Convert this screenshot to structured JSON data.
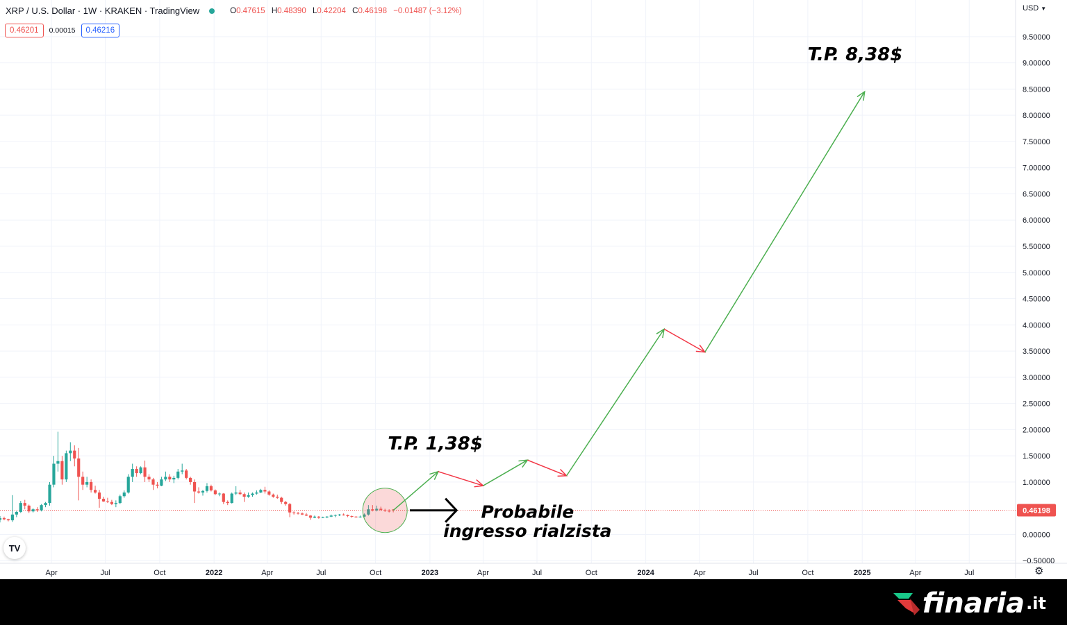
{
  "header": {
    "symbol": "XRP / U.S. Dollar · 1W · KRAKEN · TradingView",
    "status_color": "#26a69a",
    "ohlc": {
      "o_key": "O",
      "o": "0.47615",
      "h_key": "H",
      "h": "0.48390",
      "l_key": "L",
      "l": "0.42204",
      "c_key": "C",
      "c": "0.46198",
      "change": "−0.01487 (−3.12%)"
    },
    "bid": "0.46201",
    "spread": "0.00015",
    "ask": "0.46216",
    "currency": "USD"
  },
  "tv_logo": "TV",
  "brand": {
    "name": "finaria",
    "suffix": ".it",
    "logo_icon": "finaria-arrow-logo"
  },
  "chart_data": {
    "type": "candlestick",
    "title": "",
    "y_ticks": [
      9.5,
      9.0,
      8.5,
      8.0,
      7.5,
      7.0,
      6.5,
      6.0,
      5.5,
      5.0,
      4.5,
      4.0,
      3.5,
      3.0,
      2.5,
      2.0,
      1.5,
      1.0,
      0.0,
      -0.5
    ],
    "y_tick_labels": [
      "9.50000",
      "9.00000",
      "8.50000",
      "8.00000",
      "7.50000",
      "7.00000",
      "6.50000",
      "6.00000",
      "5.50000",
      "5.00000",
      "4.50000",
      "4.00000",
      "3.50000",
      "3.00000",
      "2.50000",
      "2.00000",
      "1.50000",
      "1.00000",
      "0.00000",
      "−0.50000"
    ],
    "ylim": [
      -0.55,
      10.2
    ],
    "x_ticks": [
      "2021-04-01",
      "2021-07-01",
      "2021-10-01",
      "2022-01-01",
      "2022-04-01",
      "2022-07-01",
      "2022-10-01",
      "2023-01-01",
      "2023-04-01",
      "2023-07-01",
      "2023-10-01",
      "2024-01-01",
      "2024-04-01",
      "2024-07-01",
      "2024-10-01",
      "2025-01-01",
      "2025-04-01",
      "2025-07-01"
    ],
    "x_tick_labels": [
      "Apr",
      "Jul",
      "Oct",
      "2022",
      "Apr",
      "Jul",
      "Oct",
      "2023",
      "Apr",
      "Jul",
      "Oct",
      "2024",
      "Apr",
      "Jul",
      "Oct",
      "2025",
      "Apr",
      "Jul"
    ],
    "x_tick_bold": [
      false,
      false,
      false,
      true,
      false,
      false,
      false,
      true,
      false,
      false,
      false,
      true,
      false,
      false,
      false,
      true,
      false,
      false
    ],
    "xlim": [
      "2021-01-04",
      "2025-09-15"
    ],
    "last_price": 0.46198,
    "last_price_label": "0.46198",
    "colors": {
      "up": "#26a69a",
      "down": "#ef5350",
      "up_arrow": "#4caf50",
      "down_arrow": "#f23645"
    },
    "candles": [
      {
        "date": "2021-01-04",
        "o": 0.28,
        "h": 0.35,
        "l": 0.23,
        "c": 0.31
      },
      {
        "date": "2021-01-11",
        "o": 0.31,
        "h": 0.34,
        "l": 0.27,
        "c": 0.29
      },
      {
        "date": "2021-01-18",
        "o": 0.29,
        "h": 0.3,
        "l": 0.25,
        "c": 0.27
      },
      {
        "date": "2021-01-25",
        "o": 0.27,
        "h": 0.75,
        "l": 0.24,
        "c": 0.38
      },
      {
        "date": "2021-02-01",
        "o": 0.38,
        "h": 0.45,
        "l": 0.33,
        "c": 0.43
      },
      {
        "date": "2021-02-08",
        "o": 0.43,
        "h": 0.64,
        "l": 0.41,
        "c": 0.6
      },
      {
        "date": "2021-02-15",
        "o": 0.6,
        "h": 0.66,
        "l": 0.48,
        "c": 0.55
      },
      {
        "date": "2021-02-22",
        "o": 0.55,
        "h": 0.57,
        "l": 0.41,
        "c": 0.44
      },
      {
        "date": "2021-03-01",
        "o": 0.44,
        "h": 0.5,
        "l": 0.42,
        "c": 0.48
      },
      {
        "date": "2021-03-08",
        "o": 0.48,
        "h": 0.52,
        "l": 0.43,
        "c": 0.46
      },
      {
        "date": "2021-03-15",
        "o": 0.46,
        "h": 0.58,
        "l": 0.44,
        "c": 0.56
      },
      {
        "date": "2021-03-22",
        "o": 0.56,
        "h": 0.62,
        "l": 0.52,
        "c": 0.6
      },
      {
        "date": "2021-03-29",
        "o": 0.6,
        "h": 1.0,
        "l": 0.55,
        "c": 0.95
      },
      {
        "date": "2021-04-05",
        "o": 0.95,
        "h": 1.5,
        "l": 0.9,
        "c": 1.35
      },
      {
        "date": "2021-04-12",
        "o": 1.35,
        "h": 1.96,
        "l": 1.2,
        "c": 1.4
      },
      {
        "date": "2021-04-19",
        "o": 1.4,
        "h": 1.5,
        "l": 0.95,
        "c": 1.05
      },
      {
        "date": "2021-04-26",
        "o": 1.05,
        "h": 1.6,
        "l": 1.0,
        "c": 1.55
      },
      {
        "date": "2021-05-03",
        "o": 1.55,
        "h": 1.76,
        "l": 1.4,
        "c": 1.6
      },
      {
        "date": "2021-05-10",
        "o": 1.6,
        "h": 1.7,
        "l": 1.3,
        "c": 1.45
      },
      {
        "date": "2021-05-17",
        "o": 1.45,
        "h": 1.65,
        "l": 0.65,
        "c": 1.1
      },
      {
        "date": "2021-05-24",
        "o": 1.1,
        "h": 1.2,
        "l": 0.85,
        "c": 0.95
      },
      {
        "date": "2021-05-31",
        "o": 0.95,
        "h": 1.1,
        "l": 0.9,
        "c": 1.0
      },
      {
        "date": "2021-06-07",
        "o": 1.0,
        "h": 1.05,
        "l": 0.8,
        "c": 0.85
      },
      {
        "date": "2021-06-14",
        "o": 0.85,
        "h": 0.93,
        "l": 0.78,
        "c": 0.8
      },
      {
        "date": "2021-06-21",
        "o": 0.8,
        "h": 0.85,
        "l": 0.51,
        "c": 0.68
      },
      {
        "date": "2021-06-28",
        "o": 0.68,
        "h": 0.72,
        "l": 0.62,
        "c": 0.63
      },
      {
        "date": "2021-07-05",
        "o": 0.63,
        "h": 0.7,
        "l": 0.6,
        "c": 0.62
      },
      {
        "date": "2021-07-12",
        "o": 0.62,
        "h": 0.66,
        "l": 0.56,
        "c": 0.58
      },
      {
        "date": "2021-07-19",
        "o": 0.58,
        "h": 0.65,
        "l": 0.52,
        "c": 0.6
      },
      {
        "date": "2021-07-26",
        "o": 0.6,
        "h": 0.76,
        "l": 0.58,
        "c": 0.73
      },
      {
        "date": "2021-08-02",
        "o": 0.73,
        "h": 0.84,
        "l": 0.7,
        "c": 0.8
      },
      {
        "date": "2021-08-09",
        "o": 0.8,
        "h": 1.15,
        "l": 0.78,
        "c": 1.1
      },
      {
        "date": "2021-08-16",
        "o": 1.1,
        "h": 1.35,
        "l": 1.0,
        "c": 1.25
      },
      {
        "date": "2021-08-23",
        "o": 1.25,
        "h": 1.3,
        "l": 1.1,
        "c": 1.17
      },
      {
        "date": "2021-08-30",
        "o": 1.17,
        "h": 1.3,
        "l": 1.15,
        "c": 1.28
      },
      {
        "date": "2021-09-06",
        "o": 1.28,
        "h": 1.41,
        "l": 1.0,
        "c": 1.1
      },
      {
        "date": "2021-09-13",
        "o": 1.1,
        "h": 1.15,
        "l": 1.0,
        "c": 1.05
      },
      {
        "date": "2021-09-20",
        "o": 1.05,
        "h": 1.08,
        "l": 0.85,
        "c": 0.95
      },
      {
        "date": "2021-09-27",
        "o": 0.95,
        "h": 1.0,
        "l": 0.88,
        "c": 0.93
      },
      {
        "date": "2021-10-04",
        "o": 0.93,
        "h": 1.1,
        "l": 0.92,
        "c": 1.05
      },
      {
        "date": "2021-10-11",
        "o": 1.05,
        "h": 1.2,
        "l": 1.02,
        "c": 1.1
      },
      {
        "date": "2021-10-18",
        "o": 1.1,
        "h": 1.15,
        "l": 1.0,
        "c": 1.05
      },
      {
        "date": "2021-10-25",
        "o": 1.05,
        "h": 1.12,
        "l": 0.98,
        "c": 1.08
      },
      {
        "date": "2021-11-01",
        "o": 1.08,
        "h": 1.25,
        "l": 1.05,
        "c": 1.2
      },
      {
        "date": "2021-11-08",
        "o": 1.2,
        "h": 1.35,
        "l": 1.15,
        "c": 1.22
      },
      {
        "date": "2021-11-15",
        "o": 1.22,
        "h": 1.25,
        "l": 1.05,
        "c": 1.08
      },
      {
        "date": "2021-11-22",
        "o": 1.08,
        "h": 1.1,
        "l": 0.95,
        "c": 1.0
      },
      {
        "date": "2021-11-29",
        "o": 1.0,
        "h": 1.05,
        "l": 0.6,
        "c": 0.82
      },
      {
        "date": "2021-12-06",
        "o": 0.82,
        "h": 0.9,
        "l": 0.78,
        "c": 0.8
      },
      {
        "date": "2021-12-13",
        "o": 0.8,
        "h": 0.85,
        "l": 0.74,
        "c": 0.83
      },
      {
        "date": "2021-12-20",
        "o": 0.83,
        "h": 0.98,
        "l": 0.8,
        "c": 0.92
      },
      {
        "date": "2021-12-27",
        "o": 0.92,
        "h": 0.95,
        "l": 0.82,
        "c": 0.84
      },
      {
        "date": "2022-01-03",
        "o": 0.84,
        "h": 0.86,
        "l": 0.75,
        "c": 0.77
      },
      {
        "date": "2022-01-10",
        "o": 0.77,
        "h": 0.8,
        "l": 0.73,
        "c": 0.78
      },
      {
        "date": "2022-01-17",
        "o": 0.78,
        "h": 0.79,
        "l": 0.58,
        "c": 0.62
      },
      {
        "date": "2022-01-24",
        "o": 0.62,
        "h": 0.65,
        "l": 0.56,
        "c": 0.6
      },
      {
        "date": "2022-01-31",
        "o": 0.6,
        "h": 0.8,
        "l": 0.59,
        "c": 0.78
      },
      {
        "date": "2022-02-07",
        "o": 0.78,
        "h": 0.92,
        "l": 0.75,
        "c": 0.8
      },
      {
        "date": "2022-02-14",
        "o": 0.8,
        "h": 0.85,
        "l": 0.75,
        "c": 0.77
      },
      {
        "date": "2022-02-21",
        "o": 0.77,
        "h": 0.8,
        "l": 0.62,
        "c": 0.72
      },
      {
        "date": "2022-02-28",
        "o": 0.72,
        "h": 0.8,
        "l": 0.7,
        "c": 0.75
      },
      {
        "date": "2022-03-07",
        "o": 0.75,
        "h": 0.8,
        "l": 0.72,
        "c": 0.78
      },
      {
        "date": "2022-03-14",
        "o": 0.78,
        "h": 0.84,
        "l": 0.76,
        "c": 0.8
      },
      {
        "date": "2022-03-21",
        "o": 0.8,
        "h": 0.87,
        "l": 0.79,
        "c": 0.85
      },
      {
        "date": "2022-03-28",
        "o": 0.85,
        "h": 0.91,
        "l": 0.78,
        "c": 0.82
      },
      {
        "date": "2022-04-04",
        "o": 0.82,
        "h": 0.84,
        "l": 0.74,
        "c": 0.76
      },
      {
        "date": "2022-04-11",
        "o": 0.76,
        "h": 0.78,
        "l": 0.7,
        "c": 0.72
      },
      {
        "date": "2022-04-18",
        "o": 0.72,
        "h": 0.76,
        "l": 0.68,
        "c": 0.7
      },
      {
        "date": "2022-04-25",
        "o": 0.7,
        "h": 0.72,
        "l": 0.58,
        "c": 0.62
      },
      {
        "date": "2022-05-02",
        "o": 0.62,
        "h": 0.64,
        "l": 0.55,
        "c": 0.58
      },
      {
        "date": "2022-05-09",
        "o": 0.58,
        "h": 0.6,
        "l": 0.33,
        "c": 0.42
      },
      {
        "date": "2022-05-16",
        "o": 0.42,
        "h": 0.44,
        "l": 0.38,
        "c": 0.41
      },
      {
        "date": "2022-05-23",
        "o": 0.41,
        "h": 0.43,
        "l": 0.38,
        "c": 0.4
      },
      {
        "date": "2022-05-30",
        "o": 0.4,
        "h": 0.42,
        "l": 0.37,
        "c": 0.38
      },
      {
        "date": "2022-06-06",
        "o": 0.38,
        "h": 0.41,
        "l": 0.35,
        "c": 0.36
      },
      {
        "date": "2022-06-13",
        "o": 0.36,
        "h": 0.37,
        "l": 0.28,
        "c": 0.32
      },
      {
        "date": "2022-06-20",
        "o": 0.32,
        "h": 0.36,
        "l": 0.31,
        "c": 0.34
      },
      {
        "date": "2022-06-27",
        "o": 0.34,
        "h": 0.35,
        "l": 0.3,
        "c": 0.32
      },
      {
        "date": "2022-07-04",
        "o": 0.32,
        "h": 0.34,
        "l": 0.31,
        "c": 0.33
      },
      {
        "date": "2022-07-11",
        "o": 0.33,
        "h": 0.35,
        "l": 0.31,
        "c": 0.34
      },
      {
        "date": "2022-07-18",
        "o": 0.34,
        "h": 0.38,
        "l": 0.33,
        "c": 0.36
      },
      {
        "date": "2022-07-25",
        "o": 0.36,
        "h": 0.38,
        "l": 0.33,
        "c": 0.37
      },
      {
        "date": "2022-08-01",
        "o": 0.37,
        "h": 0.39,
        "l": 0.35,
        "c": 0.38
      },
      {
        "date": "2022-08-08",
        "o": 0.38,
        "h": 0.4,
        "l": 0.36,
        "c": 0.37
      },
      {
        "date": "2022-08-15",
        "o": 0.37,
        "h": 0.38,
        "l": 0.33,
        "c": 0.35
      },
      {
        "date": "2022-08-22",
        "o": 0.35,
        "h": 0.36,
        "l": 0.32,
        "c": 0.34
      },
      {
        "date": "2022-08-29",
        "o": 0.34,
        "h": 0.35,
        "l": 0.32,
        "c": 0.33
      },
      {
        "date": "2022-09-05",
        "o": 0.33,
        "h": 0.36,
        "l": 0.32,
        "c": 0.34
      },
      {
        "date": "2022-09-12",
        "o": 0.34,
        "h": 0.4,
        "l": 0.33,
        "c": 0.38
      },
      {
        "date": "2022-09-19",
        "o": 0.38,
        "h": 0.56,
        "l": 0.36,
        "c": 0.48
      },
      {
        "date": "2022-09-26",
        "o": 0.48,
        "h": 0.56,
        "l": 0.44,
        "c": 0.46
      },
      {
        "date": "2022-10-03",
        "o": 0.46,
        "h": 0.55,
        "l": 0.44,
        "c": 0.49
      },
      {
        "date": "2022-10-10",
        "o": 0.49,
        "h": 0.53,
        "l": 0.45,
        "c": 0.47
      },
      {
        "date": "2022-10-17",
        "o": 0.47,
        "h": 0.49,
        "l": 0.43,
        "c": 0.46
      },
      {
        "date": "2022-10-24",
        "o": 0.45,
        "h": 0.48,
        "l": 0.42,
        "c": 0.44
      },
      {
        "date": "2022-10-31",
        "o": 0.47615,
        "h": 0.4839,
        "l": 0.42204,
        "c": 0.46198
      }
    ],
    "projection": [
      {
        "from": [
          "2022-10-31",
          0.46
        ],
        "to": [
          "2023-01-15",
          1.2
        ],
        "direction": "up"
      },
      {
        "from": [
          "2023-01-15",
          1.2
        ],
        "to": [
          "2023-04-01",
          0.93
        ],
        "direction": "down"
      },
      {
        "from": [
          "2023-04-01",
          0.93
        ],
        "to": [
          "2023-06-15",
          1.42
        ],
        "direction": "up"
      },
      {
        "from": [
          "2023-06-15",
          1.42
        ],
        "to": [
          "2023-08-20",
          1.12
        ],
        "direction": "down"
      },
      {
        "from": [
          "2023-08-20",
          1.12
        ],
        "to": [
          "2024-02-01",
          3.92
        ],
        "direction": "up"
      },
      {
        "from": [
          "2024-02-01",
          3.92
        ],
        "to": [
          "2024-04-10",
          3.48
        ],
        "direction": "down"
      },
      {
        "from": [
          "2024-04-10",
          3.48
        ],
        "to": [
          "2025-01-05",
          8.45
        ],
        "direction": "up"
      }
    ],
    "annotations": [
      {
        "text": "T.P. 1,38$",
        "date": "2023-01-10",
        "y": 1.62
      },
      {
        "text": "T.P. 8,38$",
        "date": "2024-12-20",
        "y": 9.05
      },
      {
        "text": "Probabile",
        "date": "2023-06-15",
        "y": 0.32
      },
      {
        "text": "ingresso rialzista",
        "date": "2023-06-15",
        "y": -0.05
      }
    ],
    "highlight": {
      "date": "2022-10-17",
      "y": 0.46
    },
    "entry_arrow": {
      "from": [
        "2022-11-28",
        0.46
      ],
      "to": [
        "2023-02-15",
        0.46
      ]
    }
  }
}
